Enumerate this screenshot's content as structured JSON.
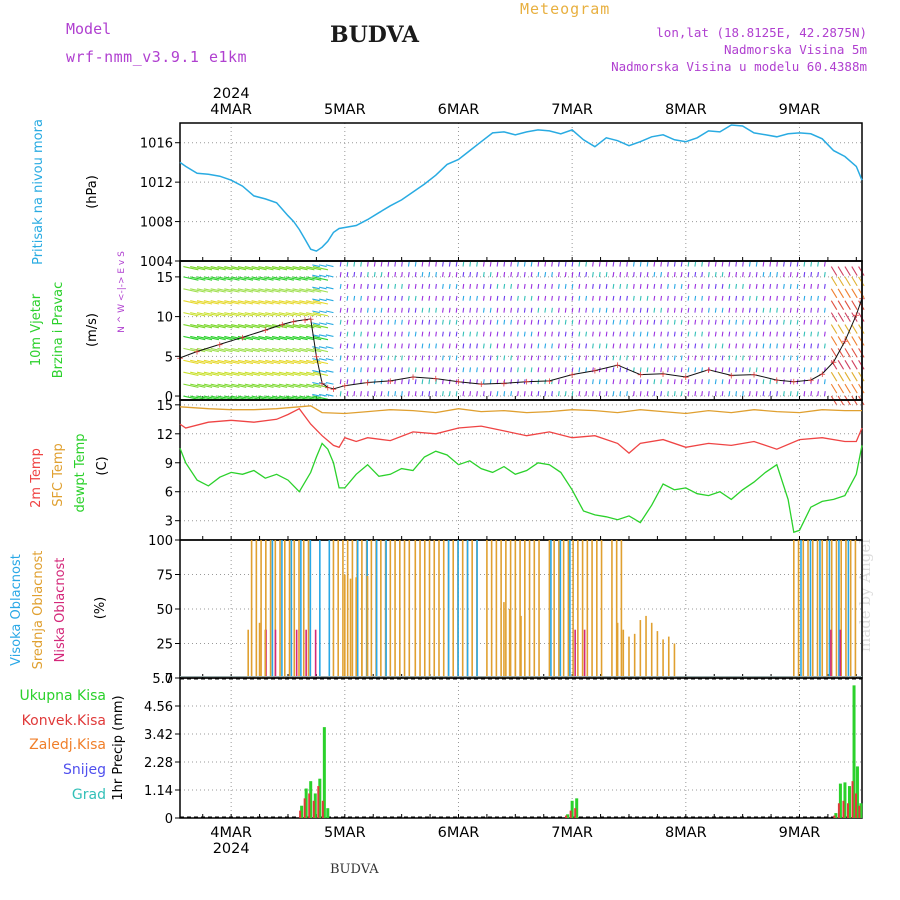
{
  "header": {
    "model_label": "Model",
    "model_name": "wrf-nmm_v3.9.1 e1km",
    "station": "BUDVA",
    "product": "Meteogram",
    "lonlat": "lon,lat (18.8125E, 42.2875N)",
    "elev": "Nadmorska Visina 5m",
    "elev_model": "Nadmorska Visina u modelu 60.4388m",
    "watermark": "made by Angel",
    "footer_station": "BUDVA"
  },
  "colors": {
    "pressure": "#29abe2",
    "t2m": "#ef4444",
    "sfc": "#e0a030",
    "dewpt": "#2bd12b",
    "cloud_high": "#2aa8e6",
    "cloud_mid": "#e0a030",
    "cloud_low": "#d4287a",
    "precip_total": "#2bd12b",
    "precip_conv": "#e03a3a",
    "precip_frz": "#f07f2a",
    "snow": "#5050ee",
    "graupel": "#33c0b8",
    "purple_text": "#b040d0",
    "orange_text": "#e8b040"
  },
  "chart_data": [
    {
      "type": "line",
      "panel": "pressure",
      "ylabel": [
        "Pritisak na nivou mora",
        "(hPa)"
      ],
      "ylim": [
        1004,
        1018
      ],
      "yticks": [
        1004,
        1008,
        1012,
        1016
      ],
      "x_axis": {
        "unit": "days",
        "range": [
          3.55,
          9.55
        ],
        "ticks": [
          4,
          5,
          6,
          7,
          8,
          9
        ],
        "tick_labels": [
          "4MAR",
          "5MAR",
          "6MAR",
          "7MAR",
          "8MAR",
          "9MAR"
        ],
        "year_label": "2024"
      },
      "series": [
        {
          "key": "pressure",
          "x": [
            3.55,
            3.6,
            3.7,
            3.8,
            3.9,
            4.0,
            4.1,
            4.2,
            4.3,
            4.4,
            4.5,
            4.55,
            4.6,
            4.65,
            4.7,
            4.75,
            4.8,
            4.85,
            4.9,
            4.95,
            5.0,
            5.1,
            5.2,
            5.3,
            5.4,
            5.5,
            5.6,
            5.7,
            5.8,
            5.9,
            6.0,
            6.1,
            6.2,
            6.3,
            6.4,
            6.5,
            6.6,
            6.7,
            6.8,
            6.9,
            7.0,
            7.1,
            7.2,
            7.3,
            7.4,
            7.5,
            7.6,
            7.7,
            7.8,
            7.9,
            8.0,
            8.1,
            8.2,
            8.3,
            8.4,
            8.5,
            8.6,
            8.7,
            8.8,
            8.9,
            9.0,
            9.1,
            9.2,
            9.3,
            9.4,
            9.5,
            9.55
          ],
          "y": [
            1014.0,
            1013.6,
            1012.9,
            1012.8,
            1012.6,
            1012.2,
            1011.6,
            1010.6,
            1010.3,
            1009.9,
            1008.6,
            1008.0,
            1007.2,
            1006.2,
            1005.2,
            1005.0,
            1005.4,
            1006.0,
            1006.9,
            1007.3,
            1007.4,
            1007.6,
            1008.2,
            1008.9,
            1009.6,
            1010.2,
            1011.0,
            1011.8,
            1012.7,
            1013.8,
            1014.3,
            1015.2,
            1016.1,
            1017.0,
            1017.1,
            1016.8,
            1017.1,
            1017.3,
            1017.2,
            1016.9,
            1017.3,
            1016.3,
            1015.6,
            1016.5,
            1016.2,
            1015.7,
            1016.1,
            1016.6,
            1016.8,
            1016.3,
            1016.1,
            1016.5,
            1017.2,
            1017.1,
            1017.8,
            1017.7,
            1017.0,
            1016.8,
            1016.6,
            1016.9,
            1017.0,
            1016.9,
            1016.4,
            1015.2,
            1014.6,
            1013.6,
            1012.2
          ]
        }
      ]
    },
    {
      "type": "line",
      "panel": "wind",
      "ylabel": [
        "10m Vjetar",
        "Brzina i Pravac",
        "(m/s)"
      ],
      "compass": "N ^ W <-|-> E v S",
      "ylim": [
        -0.5,
        17
      ],
      "yticks": [
        0,
        5,
        10,
        15
      ],
      "series": [
        {
          "name": "speed",
          "x": [
            3.55,
            3.7,
            3.9,
            4.1,
            4.3,
            4.45,
            4.55,
            4.65,
            4.7,
            4.75,
            4.8,
            4.85,
            4.9,
            5.0,
            5.2,
            5.4,
            5.6,
            5.8,
            6.0,
            6.2,
            6.4,
            6.6,
            6.8,
            7.0,
            7.2,
            7.4,
            7.6,
            7.8,
            8.0,
            8.2,
            8.4,
            8.6,
            8.8,
            8.95,
            9.1,
            9.2,
            9.3,
            9.4,
            9.5,
            9.55
          ],
          "y": [
            4.8,
            5.6,
            6.5,
            7.4,
            8.3,
            9.0,
            9.4,
            9.6,
            9.7,
            5.0,
            1.6,
            1.1,
            0.9,
            1.3,
            1.7,
            1.9,
            2.4,
            2.2,
            1.8,
            1.5,
            1.6,
            1.8,
            1.9,
            2.7,
            3.2,
            3.9,
            2.7,
            2.8,
            2.4,
            3.3,
            2.6,
            2.7,
            2.0,
            1.8,
            2.0,
            2.8,
            4.3,
            6.9,
            10.2,
            12.3
          ]
        }
      ]
    },
    {
      "type": "line",
      "panel": "temperature",
      "ylabel_lines": [
        "2m Temp",
        "SFC Temp",
        "dewpt Temp",
        "(C)"
      ],
      "ylim": [
        1,
        15.5
      ],
      "yticks": [
        3,
        6,
        9,
        12,
        15
      ],
      "series": [
        {
          "key": "sfc",
          "x": [
            3.55,
            3.8,
            4.0,
            4.2,
            4.4,
            4.6,
            4.7,
            4.8,
            5.0,
            5.2,
            5.4,
            5.6,
            5.8,
            6.0,
            6.2,
            6.4,
            6.6,
            6.8,
            7.0,
            7.2,
            7.4,
            7.6,
            7.8,
            8.0,
            8.2,
            8.4,
            8.6,
            8.8,
            9.0,
            9.2,
            9.4,
            9.55
          ],
          "y": [
            14.8,
            14.6,
            14.5,
            14.5,
            14.6,
            14.8,
            14.9,
            14.2,
            14.1,
            14.3,
            14.5,
            14.4,
            14.2,
            14.6,
            14.3,
            14.4,
            14.2,
            14.3,
            14.5,
            14.4,
            14.2,
            14.5,
            14.3,
            14.1,
            14.4,
            14.2,
            14.5,
            14.3,
            14.2,
            14.5,
            14.4,
            14.4
          ]
        },
        {
          "key": "t2m",
          "x": [
            3.55,
            3.6,
            3.8,
            4.0,
            4.2,
            4.4,
            4.5,
            4.6,
            4.7,
            4.8,
            4.9,
            4.95,
            5.0,
            5.1,
            5.2,
            5.4,
            5.6,
            5.8,
            6.0,
            6.2,
            6.4,
            6.6,
            6.8,
            7.0,
            7.2,
            7.4,
            7.5,
            7.6,
            7.8,
            8.0,
            8.2,
            8.4,
            8.6,
            8.8,
            9.0,
            9.2,
            9.4,
            9.5,
            9.55
          ],
          "y": [
            13.0,
            12.6,
            13.2,
            13.4,
            13.2,
            13.5,
            14.0,
            14.6,
            13.0,
            11.8,
            10.8,
            10.6,
            11.6,
            11.2,
            11.6,
            11.3,
            12.2,
            12.0,
            12.6,
            12.8,
            12.3,
            11.8,
            12.2,
            11.6,
            11.8,
            11.0,
            10.0,
            11.0,
            11.4,
            10.6,
            11.0,
            10.8,
            11.2,
            10.4,
            11.4,
            11.6,
            11.2,
            11.2,
            12.6
          ]
        },
        {
          "key": "dewpt",
          "x": [
            3.55,
            3.6,
            3.7,
            3.8,
            3.9,
            4.0,
            4.1,
            4.2,
            4.3,
            4.4,
            4.5,
            4.6,
            4.7,
            4.75,
            4.8,
            4.85,
            4.9,
            4.95,
            5.0,
            5.1,
            5.2,
            5.3,
            5.4,
            5.5,
            5.6,
            5.7,
            5.8,
            5.9,
            6.0,
            6.1,
            6.2,
            6.3,
            6.4,
            6.5,
            6.6,
            6.7,
            6.8,
            6.9,
            7.0,
            7.1,
            7.2,
            7.3,
            7.4,
            7.5,
            7.6,
            7.7,
            7.8,
            7.9,
            8.0,
            8.1,
            8.2,
            8.3,
            8.4,
            8.5,
            8.6,
            8.7,
            8.8,
            8.9,
            8.95,
            9.0,
            9.1,
            9.2,
            9.3,
            9.4,
            9.5,
            9.55
          ],
          "y": [
            10.5,
            9.0,
            7.2,
            6.6,
            7.5,
            8.0,
            7.8,
            8.2,
            7.4,
            7.8,
            7.2,
            6.0,
            8.0,
            9.6,
            11.0,
            10.4,
            9.0,
            6.4,
            6.4,
            7.8,
            8.8,
            7.6,
            7.8,
            8.4,
            8.2,
            9.6,
            10.2,
            9.8,
            8.8,
            9.2,
            8.4,
            8.0,
            8.6,
            7.8,
            8.2,
            9.0,
            8.8,
            8.0,
            6.2,
            4.0,
            3.6,
            3.4,
            3.1,
            3.5,
            2.8,
            4.6,
            6.8,
            6.2,
            6.4,
            5.8,
            5.6,
            6.0,
            5.2,
            6.2,
            7.0,
            8.0,
            8.8,
            5.2,
            1.8,
            2.0,
            4.4,
            5.0,
            5.2,
            5.6,
            7.8,
            10.8
          ]
        }
      ]
    },
    {
      "type": "bar",
      "panel": "clouds",
      "ylabel_lines": [
        "Visoka Oblacnost",
        "Srednja Oblacnost",
        "Niska Oblacnost",
        "(%)"
      ],
      "ylim": [
        0,
        100
      ],
      "yticks": [
        0,
        25,
        50,
        75,
        100
      ],
      "series": [
        {
          "key": "cloud_mid",
          "x_ranges": [
            [
              4.18,
              4.7
            ],
            [
              4.9,
              5.6
            ],
            [
              5.62,
              6.2
            ],
            [
              6.25,
              6.75
            ],
            [
              6.8,
              7.3
            ],
            [
              7.35,
              7.45
            ],
            [
              8.95,
              9.5
            ]
          ],
          "value": 100
        },
        {
          "key": "cloud_high",
          "x_ranges": [
            [
              4.35,
              4.9
            ],
            [
              5.1,
              5.4
            ],
            [
              5.9,
              6.2
            ],
            [
              6.8,
              7.0
            ],
            [
              9.0,
              9.5
            ]
          ],
          "value": 100
        },
        {
          "key": "cloud_low",
          "x_ranges": [
            [
              4.28,
              4.42
            ],
            [
              4.55,
              4.75
            ],
            [
              7.0,
              7.1
            ],
            [
              9.25,
              9.35
            ]
          ],
          "value": 35
        },
        {
          "key": "cloud_mid_partial",
          "x": [
            4.15,
            4.25,
            4.3,
            5.0,
            5.05,
            5.1,
            5.15,
            5.2,
            6.4,
            6.45,
            6.5,
            6.55,
            7.4,
            7.45,
            7.5,
            7.55,
            7.6,
            7.65,
            7.7,
            7.75,
            7.8,
            7.85,
            7.9
          ],
          "y": [
            35,
            40,
            35,
            75,
            72,
            73,
            75,
            74,
            55,
            50,
            42,
            45,
            40,
            35,
            30,
            32,
            42,
            45,
            40,
            34,
            28,
            30,
            25
          ]
        }
      ]
    },
    {
      "type": "bar",
      "panel": "precip",
      "ylabel": "1hr Precip (mm)",
      "ylim": [
        0,
        5.7
      ],
      "yticks": [
        0,
        1.14,
        2.28,
        3.42,
        4.56,
        5.7
      ],
      "legend": [
        "Ukupna Kisa",
        "Konvek.Kisa",
        "Zaledj.Kisa",
        "Snijeg",
        "Grad"
      ],
      "series": [
        {
          "key": "precip_total",
          "x": [
            4.62,
            4.66,
            4.7,
            4.74,
            4.78,
            4.82,
            4.85,
            6.96,
            7.0,
            7.04,
            9.32,
            9.36,
            9.4,
            9.44,
            9.48,
            9.51,
            9.54
          ],
          "y": [
            0.5,
            1.2,
            1.5,
            1.0,
            1.6,
            3.7,
            0.4,
            0.15,
            0.7,
            0.8,
            0.2,
            1.4,
            1.45,
            1.3,
            5.4,
            2.1,
            0.6
          ]
        },
        {
          "key": "precip_conv",
          "x": [
            4.62,
            4.66,
            4.7,
            4.74,
            4.78,
            4.82,
            6.96,
            7.0,
            7.04,
            9.32,
            9.36,
            9.4,
            9.44,
            9.48,
            9.51,
            9.54
          ],
          "y": [
            0.3,
            0.8,
            1.0,
            0.7,
            1.3,
            0.7,
            0.1,
            0.3,
            0.4,
            0.1,
            0.6,
            0.7,
            0.6,
            1.5,
            1.0,
            0.5
          ]
        }
      ]
    }
  ]
}
